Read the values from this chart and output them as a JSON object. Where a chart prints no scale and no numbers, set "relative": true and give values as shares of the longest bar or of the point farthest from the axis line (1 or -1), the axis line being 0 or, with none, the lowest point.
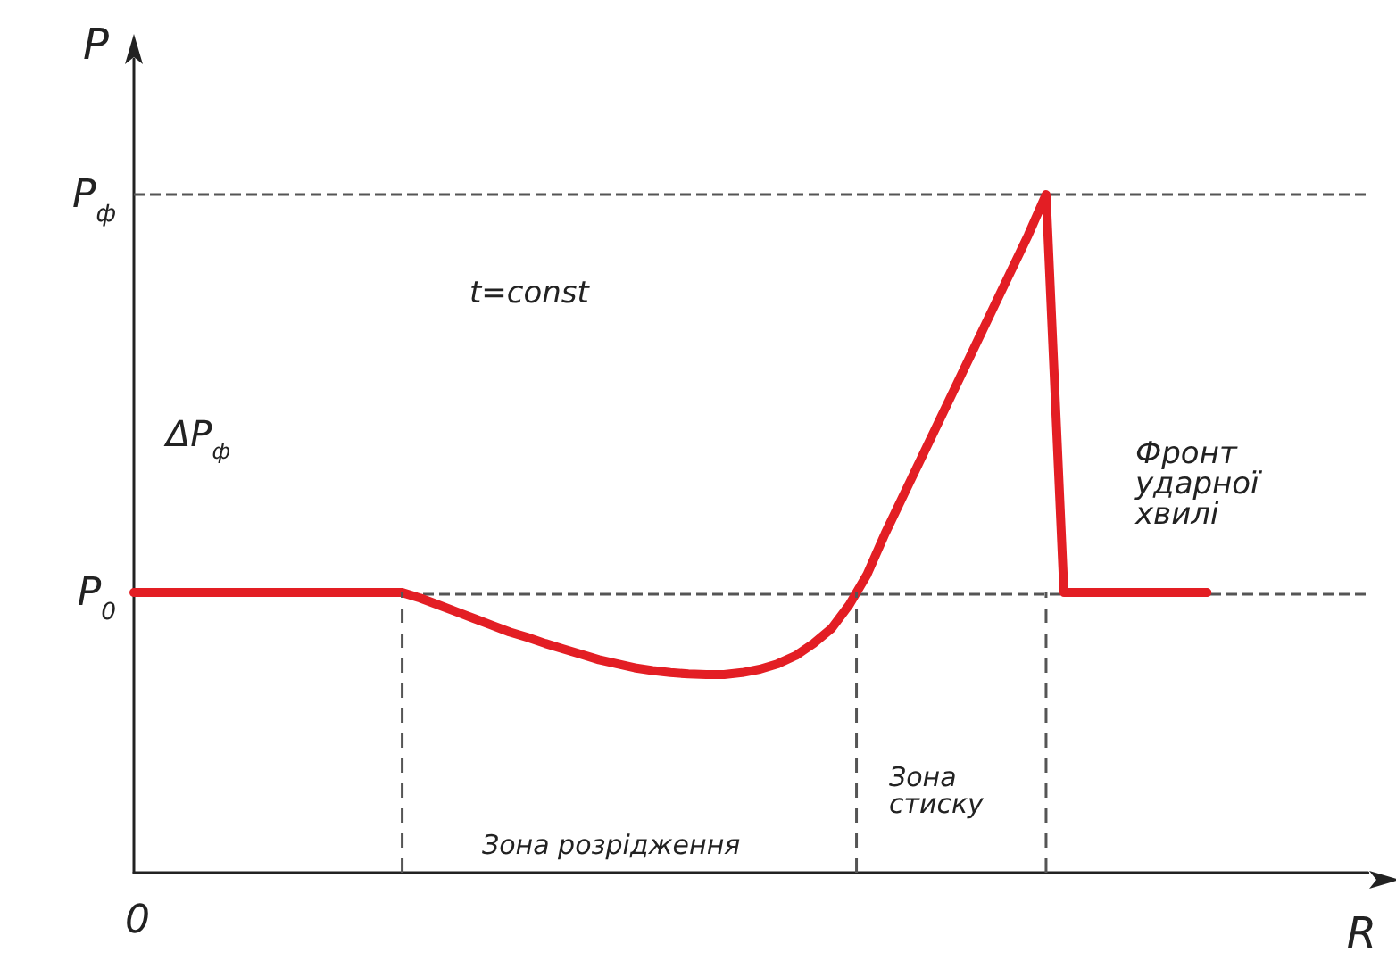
{
  "chart_data": {
    "type": "line",
    "relative": true,
    "xlabel": "R",
    "ylabel": "P",
    "marker": "none",
    "line_style": "solid",
    "categories": [
      null,
      null,
      null,
      null,
      null,
      null,
      null,
      null,
      null,
      null,
      null,
      null,
      null,
      null,
      null,
      null,
      null,
      null,
      null,
      null,
      null,
      null,
      null,
      null,
      null,
      null,
      null,
      null,
      null,
      null,
      null,
      null,
      null,
      null,
      null,
      null,
      null,
      null,
      null,
      null,
      null,
      null,
      null,
      null,
      null,
      null,
      null,
      null,
      null,
      null,
      null,
      null,
      null,
      null,
      null,
      null,
      null,
      null,
      null,
      null,
      null
    ],
    "series": [
      {
        "color": "#e31e24",
        "values": [
          0.413,
          0.413,
          0.413,
          0.413,
          0.413,
          0.413,
          0.413,
          0.413,
          0.413,
          0.413,
          0.413,
          0.413,
          0.413,
          0.413,
          0.413,
          0.413,
          0.405,
          0.395,
          0.385,
          0.375,
          0.365,
          0.355,
          0.347,
          0.338,
          0.33,
          0.322,
          0.314,
          0.308,
          0.302,
          0.298,
          0.295,
          0.293,
          0.292,
          0.292,
          0.295,
          0.3,
          0.308,
          0.32,
          0.338,
          0.36,
          0.395,
          0.44,
          0.5,
          0.555,
          0.61,
          0.665,
          0.72,
          0.775,
          0.83,
          0.885,
          0.94,
          1,
          0.413,
          0.413,
          0.413,
          0.413,
          0.413,
          0.413,
          0.413,
          0.413,
          0.413
        ]
      }
    ],
    "ref_lines": [
      {
        "axis": "y",
        "value": 1,
        "label": "P$_{ф}$",
        "line_style": "dashed"
      },
      {
        "axis": "y",
        "value": 0.413,
        "label": "P$_{0}$",
        "line_style": "dashed"
      }
    ],
    "annotations": [
      "0",
      "t=const",
      "ΔP$_{ф}$",
      "Фронт ударної хвилі",
      "Зона розрідження",
      "Зона стиску"
    ]
  }
}
